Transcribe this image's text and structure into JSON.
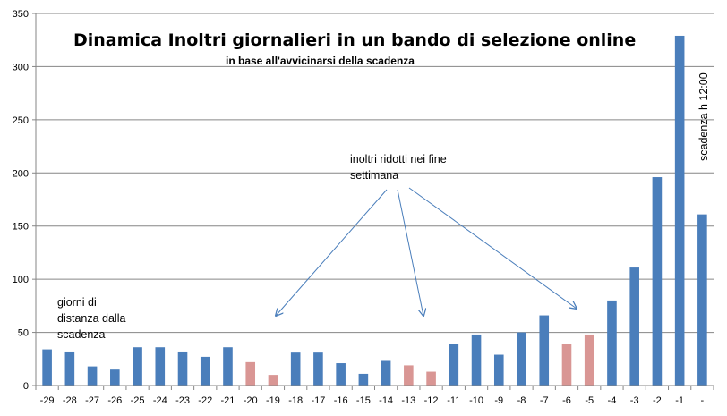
{
  "chart_data": {
    "type": "bar",
    "title": "Dinamica Inoltri giornalieri in un bando di selezione online",
    "subtitle": "in base all'avvicinarsi della scadenza",
    "categories": [
      "-29",
      "-28",
      "-27",
      "-26",
      "-25",
      "-24",
      "-23",
      "-22",
      "-21",
      "-20",
      "-19",
      "-18",
      "-17",
      "-16",
      "-15",
      "-14",
      "-13",
      "-12",
      "-11",
      "-10",
      "-9",
      "-8",
      "-7",
      "-6",
      "-5",
      "-4",
      "-3",
      "-2",
      "-1",
      "-"
    ],
    "values": [
      34,
      32,
      18,
      15,
      36,
      36,
      32,
      27,
      36,
      22,
      10,
      31,
      31,
      21,
      11,
      24,
      19,
      13,
      39,
      48,
      29,
      50,
      66,
      39,
      48,
      80,
      111,
      196,
      329,
      161
    ],
    "weekend": [
      false,
      false,
      false,
      false,
      false,
      false,
      false,
      false,
      false,
      true,
      true,
      false,
      false,
      false,
      false,
      false,
      true,
      true,
      false,
      false,
      false,
      false,
      false,
      true,
      true,
      false,
      false,
      false,
      false,
      false
    ],
    "ylim": [
      0,
      350
    ],
    "yticks": [
      0,
      50,
      100,
      150,
      200,
      250,
      300,
      350
    ],
    "grid": true,
    "colors": {
      "bar": "#4a7ebb",
      "weekend_bar": "#d99694",
      "grid": "#868686",
      "arrow": "#4a7ebb"
    },
    "annotations": {
      "weekend_note": [
        "inoltri ridotti nei fine",
        "settimana"
      ],
      "distance_note": [
        "giorni di",
        "distanza dalla",
        "scadenza"
      ],
      "deadline_note": "scadenza h 12:00"
    }
  }
}
